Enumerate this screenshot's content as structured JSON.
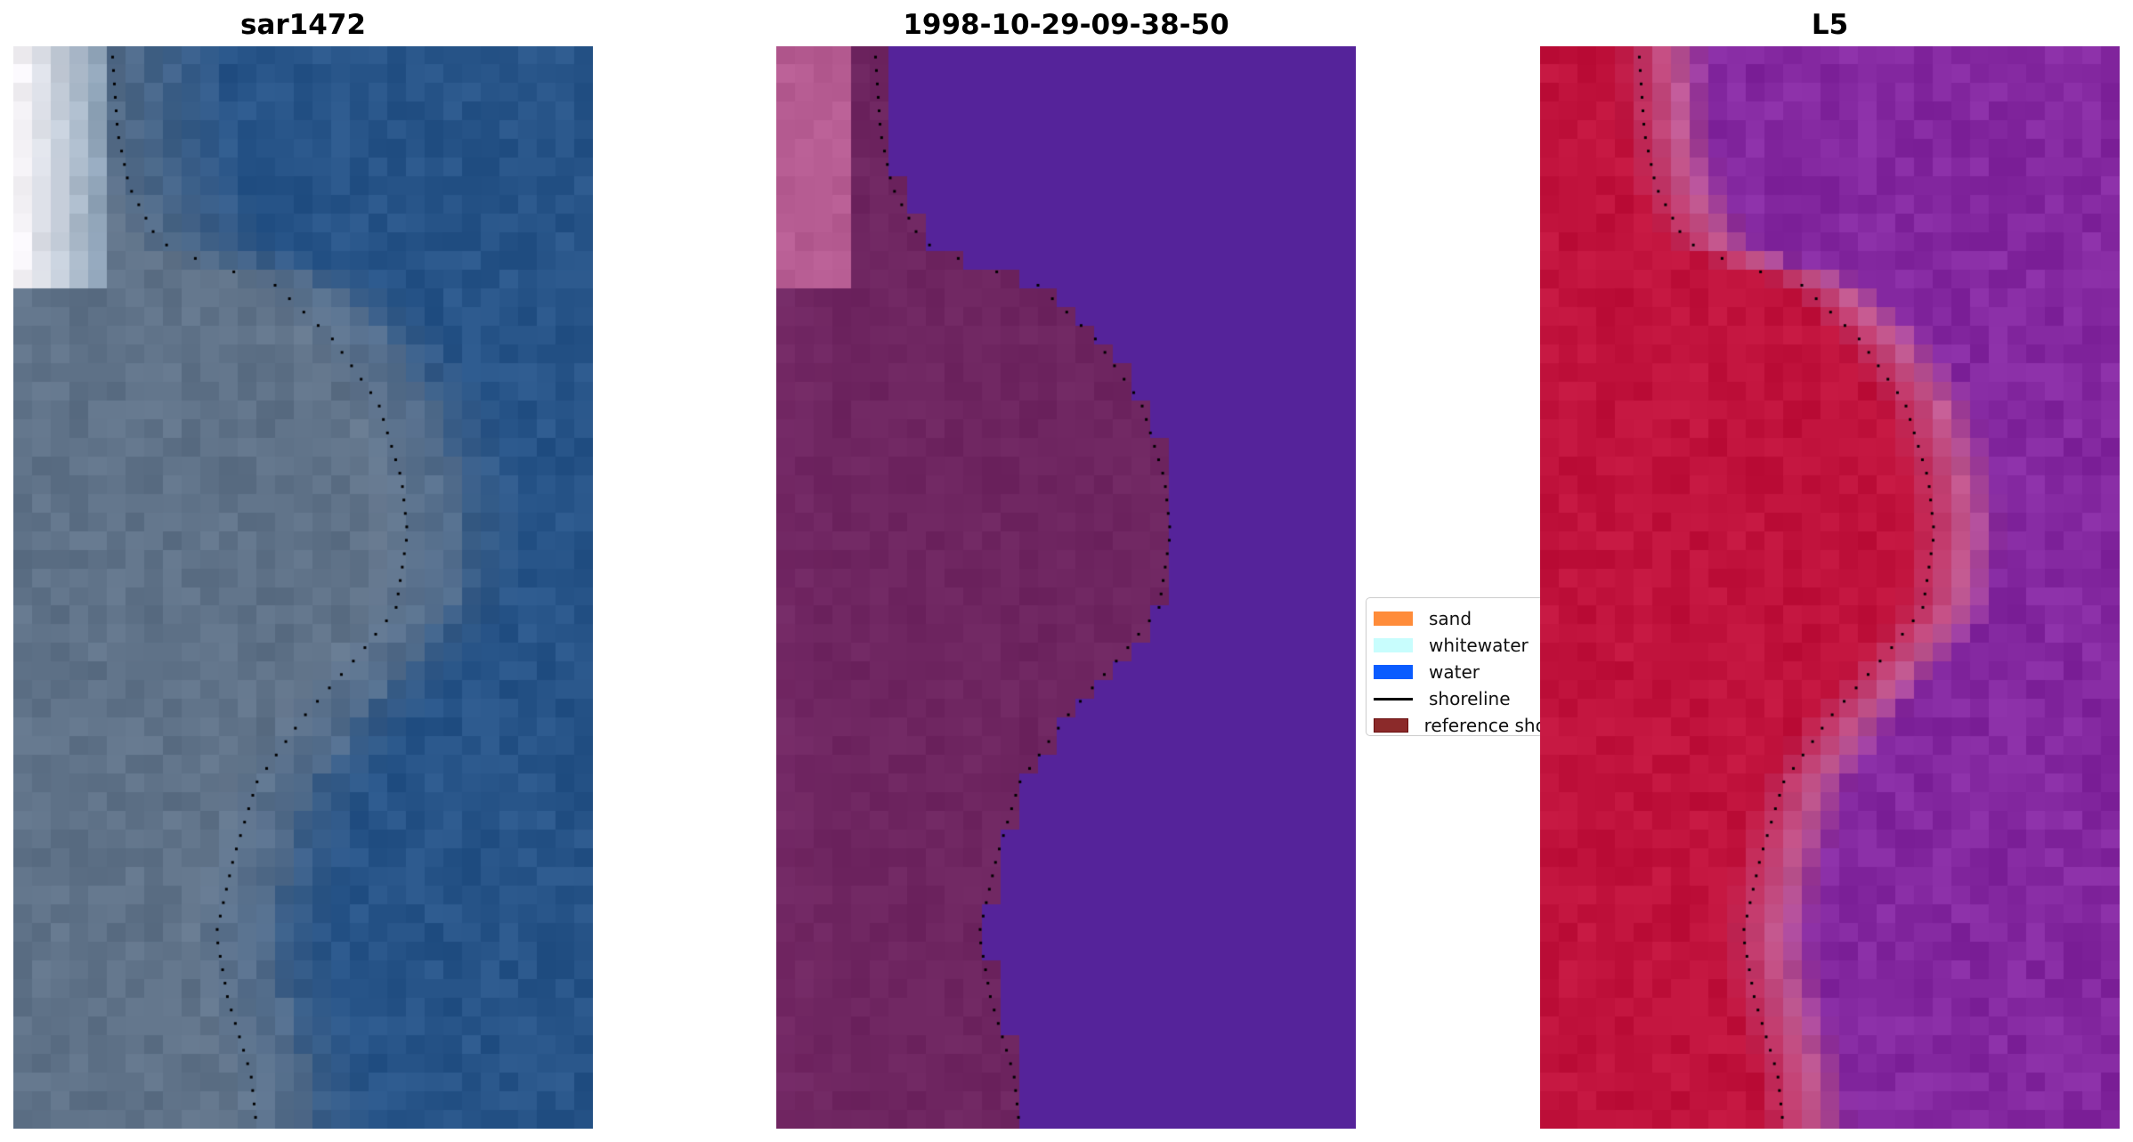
{
  "panels": [
    {
      "title": "sar1472",
      "kind": "rgb"
    },
    {
      "title": "1998-10-29-09-38-50",
      "kind": "classified"
    },
    {
      "title": "L5",
      "kind": "index"
    }
  ],
  "legend": {
    "items": [
      {
        "label": "sand",
        "type": "patch",
        "color": "#ff8c3a"
      },
      {
        "label": "whitewater",
        "type": "patch",
        "color": "#c8fdfd"
      },
      {
        "label": "water",
        "type": "patch",
        "color": "#0a5cff"
      },
      {
        "label": "shoreline",
        "type": "line",
        "color": "#000000"
      },
      {
        "label": "reference shoreline",
        "type": "patch",
        "color": "#8b2a2a"
      }
    ]
  },
  "colors": {
    "rgb_land": "#5f7288",
    "rgb_water": "#275488",
    "rgb_beach": "#f4f2f6",
    "cls_land": "#6e2560",
    "cls_pink": "#b65c92",
    "cls_water": "#55239a",
    "idx_land": "#c0123c",
    "idx_edge": "#c25a92",
    "idx_water": "#8428a0"
  }
}
